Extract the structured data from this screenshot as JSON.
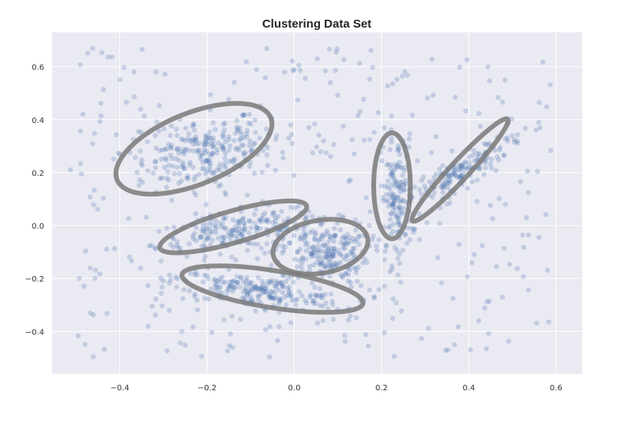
{
  "chart_data": {
    "type": "scatter",
    "title": "Clustering Data Set",
    "xlabel": "",
    "ylabel": "",
    "xlim": [
      -0.555,
      0.66
    ],
    "ylim": [
      -0.56,
      0.73
    ],
    "x_ticks": [
      -0.4,
      -0.2,
      0.0,
      0.2,
      0.4,
      0.6
    ],
    "x_tick_labels": [
      "−0.4",
      "−0.2",
      "0.0",
      "0.2",
      "0.4",
      "0.6"
    ],
    "y_ticks": [
      0.6,
      0.4,
      0.2,
      0.0,
      -0.2,
      -0.4
    ],
    "y_tick_labels": [
      "0.6",
      "0.4",
      "0.2",
      "0.0",
      "−0.2",
      "−0.4"
    ],
    "grid": true,
    "legend": "none",
    "colors": {
      "background": "#eaeaf2",
      "grid": "#ffffff",
      "points": "#4c72b0",
      "annotation_stroke": "#7a7a7a"
    },
    "point_alpha": 0.25,
    "clusters": [
      {
        "center": [
          -0.2,
          0.28
        ],
        "spread": [
          0.09,
          0.06
        ],
        "rotation_deg": 25,
        "count": 240
      },
      {
        "center": [
          -0.13,
          -0.02
        ],
        "spread": [
          0.1,
          0.035
        ],
        "rotation_deg": 15,
        "count": 200
      },
      {
        "center": [
          -0.08,
          -0.25
        ],
        "spread": [
          0.1,
          0.03
        ],
        "rotation_deg": -12,
        "count": 210
      },
      {
        "center": [
          0.07,
          -0.1
        ],
        "spread": [
          0.05,
          0.06
        ],
        "rotation_deg": 0,
        "count": 220
      },
      {
        "center": [
          0.235,
          0.1
        ],
        "spread": [
          0.018,
          0.12
        ],
        "rotation_deg": 0,
        "count": 150
      },
      {
        "center": [
          0.39,
          0.21
        ],
        "spread": [
          0.09,
          0.02
        ],
        "rotation_deg": 48,
        "count": 150
      }
    ],
    "background_noise_count": 330,
    "annotations": [
      {
        "shape": "ellipse",
        "center": [
          -0.23,
          0.29
        ],
        "radii": [
          0.19,
          0.135
        ],
        "rotation_deg": 22
      },
      {
        "shape": "ellipse",
        "center": [
          -0.14,
          -0.005
        ],
        "radii": [
          0.175,
          0.06
        ],
        "rotation_deg": 16
      },
      {
        "shape": "ellipse",
        "center": [
          -0.05,
          -0.24
        ],
        "radii": [
          0.21,
          0.07
        ],
        "rotation_deg": -9
      },
      {
        "shape": "ellipse",
        "center": [
          0.06,
          -0.08
        ],
        "radii": [
          0.11,
          0.1
        ],
        "rotation_deg": 10
      },
      {
        "shape": "ellipse",
        "center": [
          0.224,
          0.15
        ],
        "radii": [
          0.042,
          0.2
        ],
        "rotation_deg": 0
      },
      {
        "shape": "ellipse",
        "center": [
          0.38,
          0.21
        ],
        "radii": [
          0.16,
          0.035
        ],
        "rotation_deg": 47
      }
    ]
  }
}
